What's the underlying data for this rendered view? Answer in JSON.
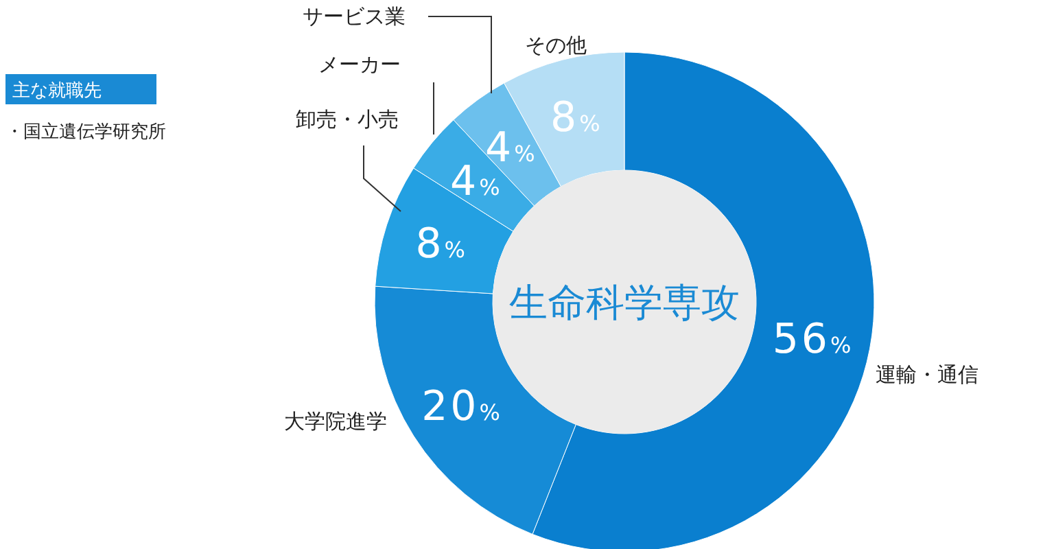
{
  "chart_data": {
    "type": "donut",
    "title": "生命科学専攻",
    "categories": [
      "運輸・通信",
      "大学院進学",
      "卸売・小売",
      "メーカー",
      "サービス業",
      "その他"
    ],
    "values": [
      56,
      20,
      8,
      4,
      4,
      8
    ],
    "value_labels": [
      "56%",
      "20%",
      "8%",
      "4%",
      "4%",
      "8%"
    ],
    "colors": [
      "#0a7fcf",
      "#168bd6",
      "#23a0e2",
      "#3aace6",
      "#6cc0ed",
      "#b5def5"
    ],
    "annotations": [
      "主な就職先",
      "・国立遺伝学研究所"
    ]
  }
}
